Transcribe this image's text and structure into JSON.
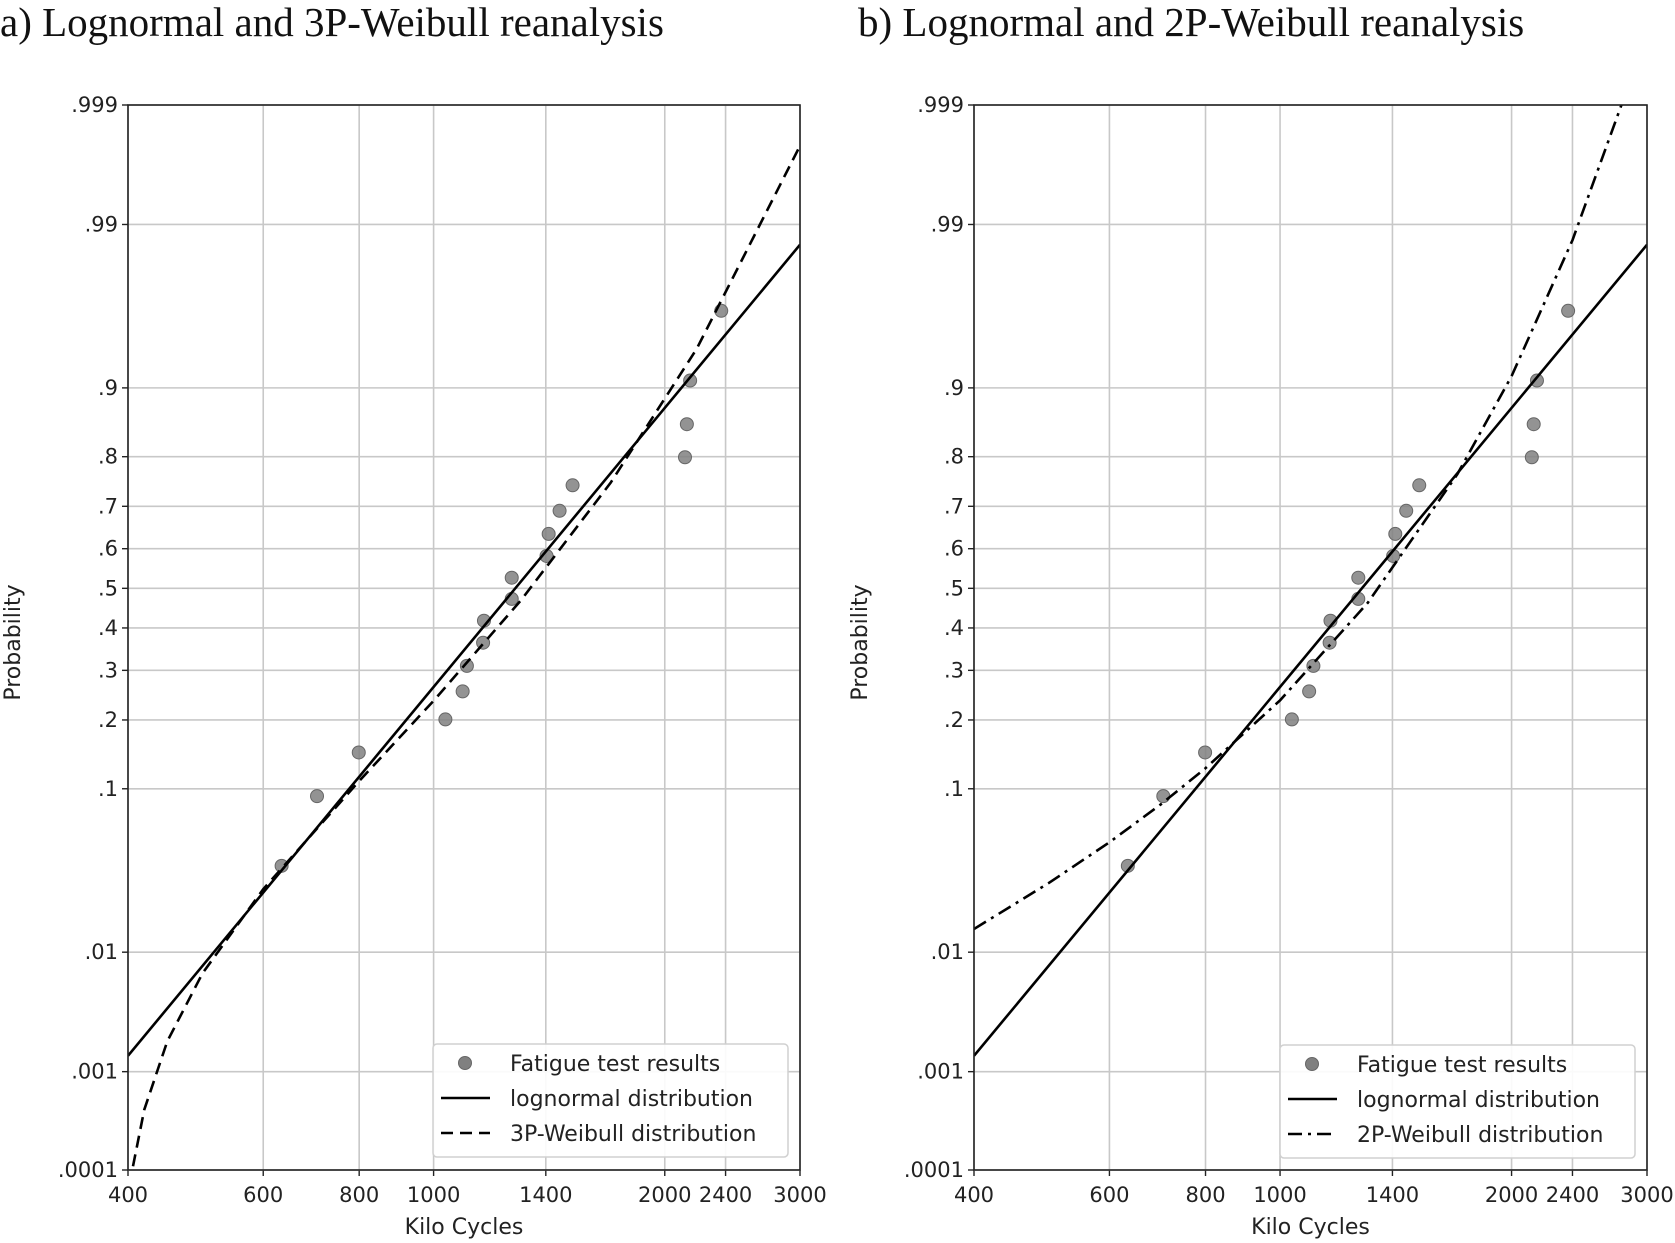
{
  "chart_data": [
    {
      "type": "scatter",
      "title": "a) Lognormal and 3P-Weibull reanalysis",
      "xlabel": "Kilo Cycles",
      "ylabel": "Probability",
      "x_scale": "log",
      "y_scale": "normal-probability",
      "xlim": [
        400,
        3000
      ],
      "ylim": [
        0.0001,
        0.999
      ],
      "x_ticks": [
        400,
        600,
        800,
        1000,
        1400,
        2000,
        2400,
        3000
      ],
      "x_tick_labels": [
        "400",
        "600",
        "800",
        "1000",
        "1400",
        "2000",
        "2400",
        "3000"
      ],
      "y_ticks": [
        0.0001,
        0.001,
        0.01,
        0.1,
        0.2,
        0.3,
        0.4,
        0.5,
        0.6,
        0.7,
        0.8,
        0.9,
        0.99,
        0.999
      ],
      "y_tick_labels": [
        ".0001",
        ".001",
        ".01",
        ".1",
        ".2",
        ".3",
        ".4",
        ".5",
        ".6",
        ".7",
        ".8",
        ".9",
        ".99",
        ".999"
      ],
      "grid": true,
      "legend_position": "bottom-right",
      "series": [
        {
          "name": "Fatigue test results",
          "kind": "markers",
          "color": "#808080",
          "x": [
            634,
            705,
            799,
            1036,
            1091,
            1105,
            1160,
            1163,
            1264,
            1264,
            1403,
            1412,
            1459,
            1517,
            2125,
            2137,
            2158,
            2369
          ],
          "y": [
            0.038,
            0.092,
            0.147,
            0.201,
            0.255,
            0.31,
            0.364,
            0.418,
            0.473,
            0.527,
            0.582,
            0.636,
            0.69,
            0.745,
            0.799,
            0.853,
            0.908,
            0.962
          ]
        },
        {
          "name": "lognormal distribution",
          "kind": "solid",
          "color": "#000000",
          "x": [
            400,
            3000
          ],
          "y": [
            0.0014,
            0.986
          ]
        },
        {
          "name": "3P-Weibull distribution",
          "kind": "dashed",
          "color": "#000000",
          "x": [
            406,
            420,
            450,
            500,
            600,
            800,
            1000,
            1300,
            1700,
            2200,
            3000
          ],
          "y": [
            0.00011,
            0.00043,
            0.00189,
            0.0069,
            0.0272,
            0.109,
            0.236,
            0.47,
            0.75,
            0.937,
            0.99767
          ]
        }
      ]
    },
    {
      "type": "scatter",
      "title": "b) Lognormal and 2P-Weibull reanalysis",
      "xlabel": "Kilo Cycles",
      "ylabel": "Probability",
      "x_scale": "log",
      "y_scale": "normal-probability",
      "xlim": [
        400,
        3000
      ],
      "ylim": [
        0.0001,
        0.999
      ],
      "x_ticks": [
        400,
        600,
        800,
        1000,
        1400,
        2000,
        2400,
        3000
      ],
      "x_tick_labels": [
        "400",
        "600",
        "800",
        "1000",
        "1400",
        "2000",
        "2400",
        "3000"
      ],
      "y_ticks": [
        0.0001,
        0.001,
        0.01,
        0.1,
        0.2,
        0.3,
        0.4,
        0.5,
        0.6,
        0.7,
        0.8,
        0.9,
        0.99,
        0.999
      ],
      "y_tick_labels": [
        ".0001",
        ".001",
        ".01",
        ".1",
        ".2",
        ".3",
        ".4",
        ".5",
        ".6",
        ".7",
        ".8",
        ".9",
        ".99",
        ".999"
      ],
      "grid": true,
      "legend_position": "bottom-right",
      "series": [
        {
          "name": "Fatigue test results",
          "kind": "markers",
          "color": "#808080",
          "x": [
            634,
            705,
            799,
            1036,
            1091,
            1105,
            1160,
            1163,
            1264,
            1264,
            1403,
            1412,
            1459,
            1517,
            2125,
            2137,
            2158,
            2369
          ],
          "y": [
            0.038,
            0.092,
            0.147,
            0.201,
            0.255,
            0.31,
            0.364,
            0.418,
            0.473,
            0.527,
            0.582,
            0.636,
            0.69,
            0.745,
            0.799,
            0.853,
            0.908,
            0.962
          ]
        },
        {
          "name": "lognormal distribution",
          "kind": "solid",
          "color": "#000000",
          "x": [
            400,
            3000
          ],
          "y": [
            0.0014,
            0.986
          ]
        },
        {
          "name": "2P-Weibull distribution",
          "kind": "dashdot",
          "color": "#000000",
          "x": [
            400,
            500,
            600,
            700,
            800,
            1000,
            1300,
            1700,
            2000,
            2400,
            2780
          ],
          "y": [
            0.0147,
            0.0297,
            0.0522,
            0.0837,
            0.125,
            0.237,
            0.463,
            0.767,
            0.9126,
            0.987,
            0.99901
          ]
        }
      ]
    }
  ]
}
